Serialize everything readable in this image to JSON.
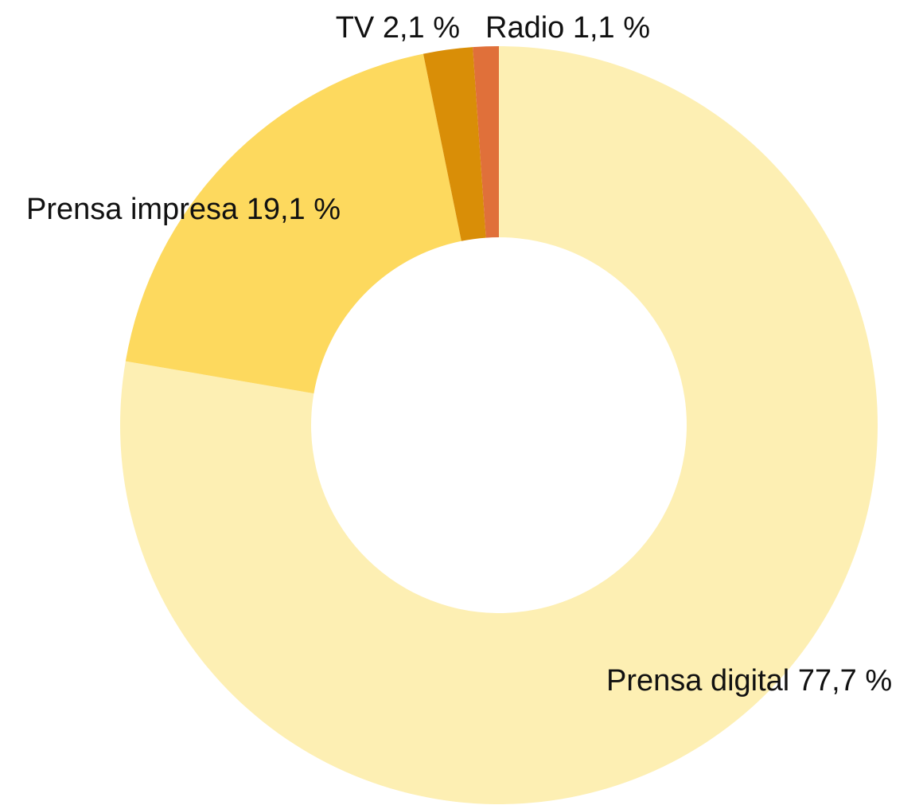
{
  "chart_data": {
    "type": "donut",
    "categories": [
      "Prensa digital",
      "Prensa impresa",
      "TV",
      "Radio"
    ],
    "values": [
      77.7,
      19.1,
      2.1,
      1.1
    ],
    "value_labels": [
      "77,7 %",
      "19,1 %",
      "2,1 %",
      "1,1 %"
    ],
    "colors": [
      "#fdefb3",
      "#fdd95e",
      "#d98e07",
      "#e0703a"
    ]
  }
}
